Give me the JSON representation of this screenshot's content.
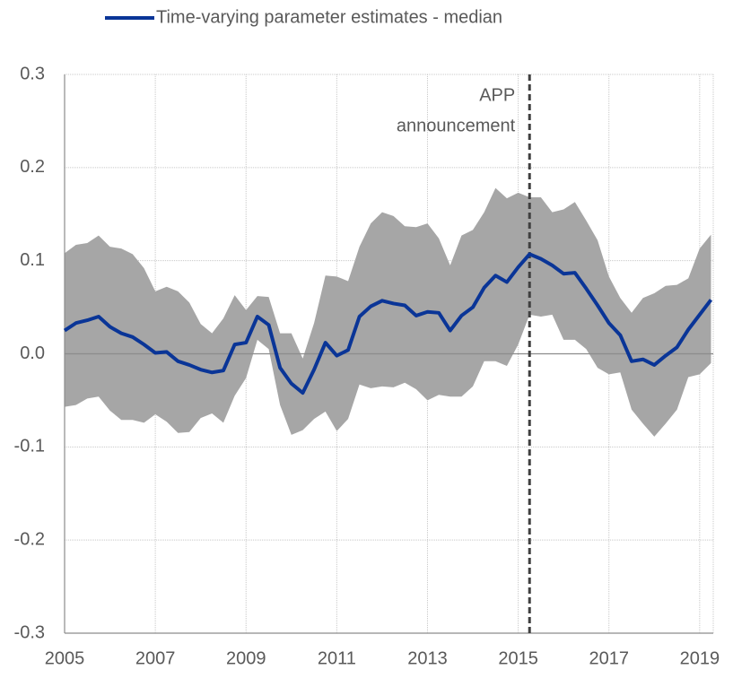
{
  "chart_data": {
    "type": "line",
    "x": [
      2005,
      2005.25,
      2005.5,
      2005.75,
      2006,
      2006.25,
      2006.5,
      2006.75,
      2007,
      2007.25,
      2007.5,
      2007.75,
      2008,
      2008.25,
      2008.5,
      2008.75,
      2009,
      2009.25,
      2009.5,
      2009.75,
      2010,
      2010.25,
      2010.5,
      2010.75,
      2011,
      2011.25,
      2011.5,
      2011.75,
      2012,
      2012.25,
      2012.5,
      2012.75,
      2013,
      2013.25,
      2013.5,
      2013.75,
      2014,
      2014.25,
      2014.5,
      2014.75,
      2015,
      2015.25,
      2015.5,
      2015.75,
      2016,
      2016.25,
      2016.5,
      2016.75,
      2017,
      2017.25,
      2017.5,
      2017.75,
      2018,
      2018.25,
      2018.5,
      2018.75,
      2019,
      2019.25
    ],
    "series": [
      {
        "name": "Time-varying parameter estimates - median",
        "color": "#0a3597",
        "values": [
          0.025,
          0.033,
          0.036,
          0.04,
          0.029,
          0.022,
          0.018,
          0.01,
          0.001,
          0.002,
          -0.008,
          -0.012,
          -0.017,
          -0.02,
          -0.018,
          0.01,
          0.012,
          0.04,
          0.031,
          -0.015,
          -0.032,
          -0.042,
          -0.017,
          0.012,
          -0.002,
          0.004,
          0.04,
          0.051,
          0.057,
          0.054,
          0.052,
          0.041,
          0.045,
          0.044,
          0.025,
          0.041,
          0.05,
          0.071,
          0.084,
          0.077,
          0.093,
          0.107,
          0.102,
          0.095,
          0.086,
          0.087,
          0.07,
          0.052,
          0.033,
          0.02,
          -0.008,
          -0.006,
          -0.012,
          -0.002,
          0.007,
          0.026,
          0.042,
          0.058
        ]
      }
    ],
    "band": {
      "color": "#a6a6a6",
      "upper": [
        0.108,
        0.117,
        0.119,
        0.127,
        0.115,
        0.113,
        0.107,
        0.092,
        0.067,
        0.072,
        0.067,
        0.055,
        0.032,
        0.022,
        0.038,
        0.063,
        0.047,
        0.062,
        0.061,
        0.022,
        0.022,
        -0.005,
        0.033,
        0.084,
        0.083,
        0.078,
        0.115,
        0.14,
        0.152,
        0.148,
        0.137,
        0.136,
        0.14,
        0.124,
        0.095,
        0.127,
        0.133,
        0.152,
        0.178,
        0.167,
        0.173,
        0.168,
        0.168,
        0.152,
        0.155,
        0.163,
        0.143,
        0.122,
        0.083,
        0.06,
        0.044,
        0.06,
        0.065,
        0.073,
        0.074,
        0.081,
        0.113,
        0.128
      ],
      "lower": [
        -0.057,
        -0.055,
        -0.048,
        -0.046,
        -0.061,
        -0.071,
        -0.071,
        -0.074,
        -0.065,
        -0.073,
        -0.085,
        -0.084,
        -0.069,
        -0.064,
        -0.074,
        -0.045,
        -0.026,
        0.015,
        0.005,
        -0.055,
        -0.087,
        -0.082,
        -0.07,
        -0.062,
        -0.083,
        -0.07,
        -0.033,
        -0.037,
        -0.035,
        -0.036,
        -0.031,
        -0.038,
        -0.05,
        -0.044,
        -0.046,
        -0.046,
        -0.035,
        -0.008,
        -0.008,
        -0.013,
        0.01,
        0.042,
        0.04,
        0.042,
        0.015,
        0.015,
        0.005,
        -0.015,
        -0.022,
        -0.02,
        -0.06,
        -0.075,
        -0.089,
        -0.075,
        -0.06,
        -0.025,
        -0.022,
        -0.01
      ]
    },
    "annotation": {
      "x": 2015.25,
      "lines": [
        "APP",
        "announcement"
      ],
      "color": "#595959"
    },
    "xlim": [
      2005,
      2019.3
    ],
    "xticks": [
      2005,
      2007,
      2009,
      2011,
      2013,
      2015,
      2017,
      2019
    ],
    "ylim": [
      -0.3,
      0.3
    ],
    "yticks": [
      0.3,
      0.2,
      0.1,
      {
        "value": 0,
        "label": "0.0"
      },
      -0.1,
      -0.2,
      -0.3
    ],
    "grid": true
  }
}
